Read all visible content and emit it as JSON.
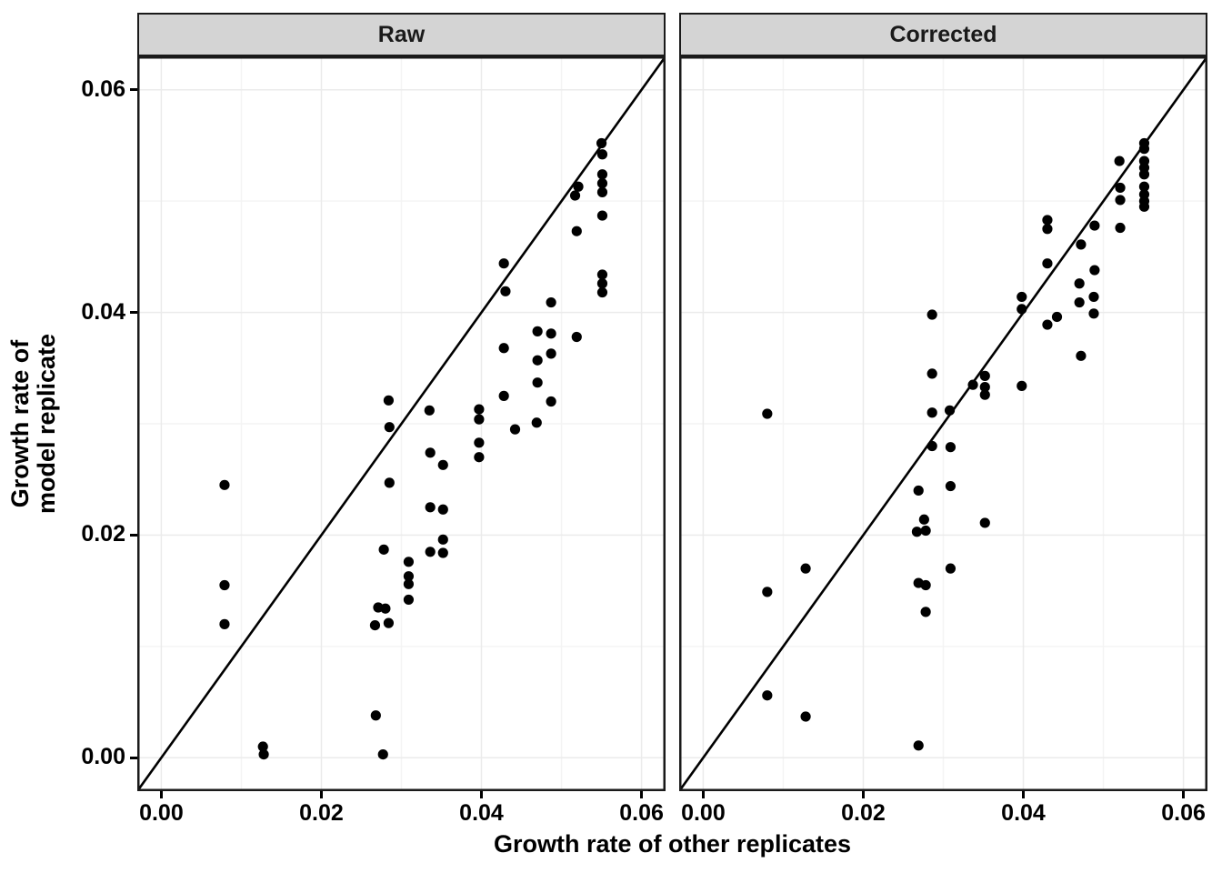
{
  "figure": {
    "x_axis_title": "Growth rate of other replicates",
    "y_axis_title_line1": "Growth rate of",
    "y_axis_title_line2": "model replicate",
    "colors": {
      "background": "#ffffff",
      "text": "#000000",
      "point": "#000000",
      "identity_line": "#000000",
      "panel_border": "#1a1a1a",
      "strip_background": "#d4d4d4",
      "strip_border": "#1a1a1a",
      "grid_major": "#ebebeb",
      "grid_minor": "#f4f4f4"
    }
  },
  "chart_data": {
    "type": "scatter",
    "title": "",
    "xlabel": "Growth rate of other replicates",
    "ylabel": "Growth rate of\nmodel replicate",
    "x_range": [
      -0.003,
      0.063
    ],
    "y_range": [
      -0.003,
      0.063
    ],
    "grid": "major-and-minor",
    "legend_position": "none",
    "reference_line": {
      "type": "identity",
      "slope": 1,
      "intercept": 0
    },
    "x_ticks": {
      "values": [
        0.0,
        0.02,
        0.04,
        0.06
      ],
      "labels": [
        "0.00",
        "0.02",
        "0.04",
        "0.06"
      ]
    },
    "y_ticks": {
      "values": [
        0.0,
        0.02,
        0.04,
        0.06
      ],
      "labels": [
        "0.00",
        "0.02",
        "0.04",
        "0.06"
      ]
    },
    "minor_ticks": [
      0.01,
      0.03,
      0.05
    ],
    "facets": [
      {
        "label": "Raw",
        "points": [
          [
            0.0079,
            0.0245
          ],
          [
            0.0079,
            0.0155
          ],
          [
            0.0079,
            0.012
          ],
          [
            0.0127,
            0.001
          ],
          [
            0.0128,
            0.0003
          ],
          [
            0.0267,
            0.0119
          ],
          [
            0.0271,
            0.0135
          ],
          [
            0.028,
            0.0134
          ],
          [
            0.0284,
            0.0121
          ],
          [
            0.0277,
            0.0003
          ],
          [
            0.0268,
            0.0038
          ],
          [
            0.0278,
            0.0187
          ],
          [
            0.0285,
            0.0247
          ],
          [
            0.0284,
            0.0321
          ],
          [
            0.0285,
            0.0297
          ],
          [
            0.0309,
            0.0176
          ],
          [
            0.0309,
            0.0163
          ],
          [
            0.0309,
            0.0156
          ],
          [
            0.0309,
            0.0142
          ],
          [
            0.0335,
            0.0312
          ],
          [
            0.0336,
            0.0274
          ],
          [
            0.0336,
            0.0225
          ],
          [
            0.0336,
            0.0185
          ],
          [
            0.0352,
            0.0263
          ],
          [
            0.0352,
            0.0223
          ],
          [
            0.0352,
            0.0196
          ],
          [
            0.0352,
            0.0184
          ],
          [
            0.0397,
            0.0313
          ],
          [
            0.0397,
            0.0304
          ],
          [
            0.0397,
            0.0283
          ],
          [
            0.0397,
            0.027
          ],
          [
            0.0428,
            0.0444
          ],
          [
            0.043,
            0.0419
          ],
          [
            0.0428,
            0.0368
          ],
          [
            0.0428,
            0.0325
          ],
          [
            0.0442,
            0.0295
          ],
          [
            0.047,
            0.0383
          ],
          [
            0.047,
            0.0357
          ],
          [
            0.047,
            0.0337
          ],
          [
            0.0469,
            0.0301
          ],
          [
            0.0487,
            0.0409
          ],
          [
            0.0487,
            0.0381
          ],
          [
            0.0487,
            0.0363
          ],
          [
            0.0487,
            0.032
          ],
          [
            0.0521,
            0.0513
          ],
          [
            0.0517,
            0.0505
          ],
          [
            0.0519,
            0.0473
          ],
          [
            0.0519,
            0.0378
          ],
          [
            0.055,
            0.0552
          ],
          [
            0.0551,
            0.0542
          ],
          [
            0.0551,
            0.0524
          ],
          [
            0.0551,
            0.0516
          ],
          [
            0.0551,
            0.0508
          ],
          [
            0.0551,
            0.0487
          ],
          [
            0.0551,
            0.0434
          ],
          [
            0.0551,
            0.0426
          ],
          [
            0.0551,
            0.0418
          ]
        ]
      },
      {
        "label": "Corrected",
        "points": [
          [
            0.008,
            0.0309
          ],
          [
            0.008,
            0.0149
          ],
          [
            0.008,
            0.0056
          ],
          [
            0.0128,
            0.017
          ],
          [
            0.0128,
            0.0037
          ],
          [
            0.0269,
            0.024
          ],
          [
            0.0276,
            0.0214
          ],
          [
            0.0267,
            0.0203
          ],
          [
            0.0278,
            0.0204
          ],
          [
            0.0269,
            0.0157
          ],
          [
            0.0278,
            0.0155
          ],
          [
            0.0278,
            0.0131
          ],
          [
            0.0269,
            0.0011
          ],
          [
            0.0286,
            0.0398
          ],
          [
            0.0286,
            0.0345
          ],
          [
            0.0286,
            0.031
          ],
          [
            0.0286,
            0.028
          ],
          [
            0.0308,
            0.0312
          ],
          [
            0.0309,
            0.0279
          ],
          [
            0.0309,
            0.0244
          ],
          [
            0.0309,
            0.017
          ],
          [
            0.0337,
            0.0335
          ],
          [
            0.0352,
            0.0343
          ],
          [
            0.0352,
            0.0333
          ],
          [
            0.0352,
            0.0326
          ],
          [
            0.0352,
            0.0211
          ],
          [
            0.0398,
            0.0414
          ],
          [
            0.0398,
            0.0403
          ],
          [
            0.0398,
            0.0334
          ],
          [
            0.043,
            0.0483
          ],
          [
            0.043,
            0.0475
          ],
          [
            0.043,
            0.0444
          ],
          [
            0.043,
            0.0389
          ],
          [
            0.0442,
            0.0396
          ],
          [
            0.0472,
            0.0461
          ],
          [
            0.047,
            0.0426
          ],
          [
            0.047,
            0.0409
          ],
          [
            0.0472,
            0.0361
          ],
          [
            0.0489,
            0.0478
          ],
          [
            0.0489,
            0.0438
          ],
          [
            0.0488,
            0.0414
          ],
          [
            0.0488,
            0.0399
          ],
          [
            0.052,
            0.0536
          ],
          [
            0.0521,
            0.0512
          ],
          [
            0.0521,
            0.0501
          ],
          [
            0.0521,
            0.0476
          ],
          [
            0.0551,
            0.0552
          ],
          [
            0.0551,
            0.0547
          ],
          [
            0.0551,
            0.0536
          ],
          [
            0.0551,
            0.053
          ],
          [
            0.0551,
            0.0524
          ],
          [
            0.0551,
            0.0513
          ],
          [
            0.0551,
            0.0506
          ],
          [
            0.0551,
            0.05
          ],
          [
            0.0551,
            0.0495
          ]
        ]
      }
    ]
  }
}
